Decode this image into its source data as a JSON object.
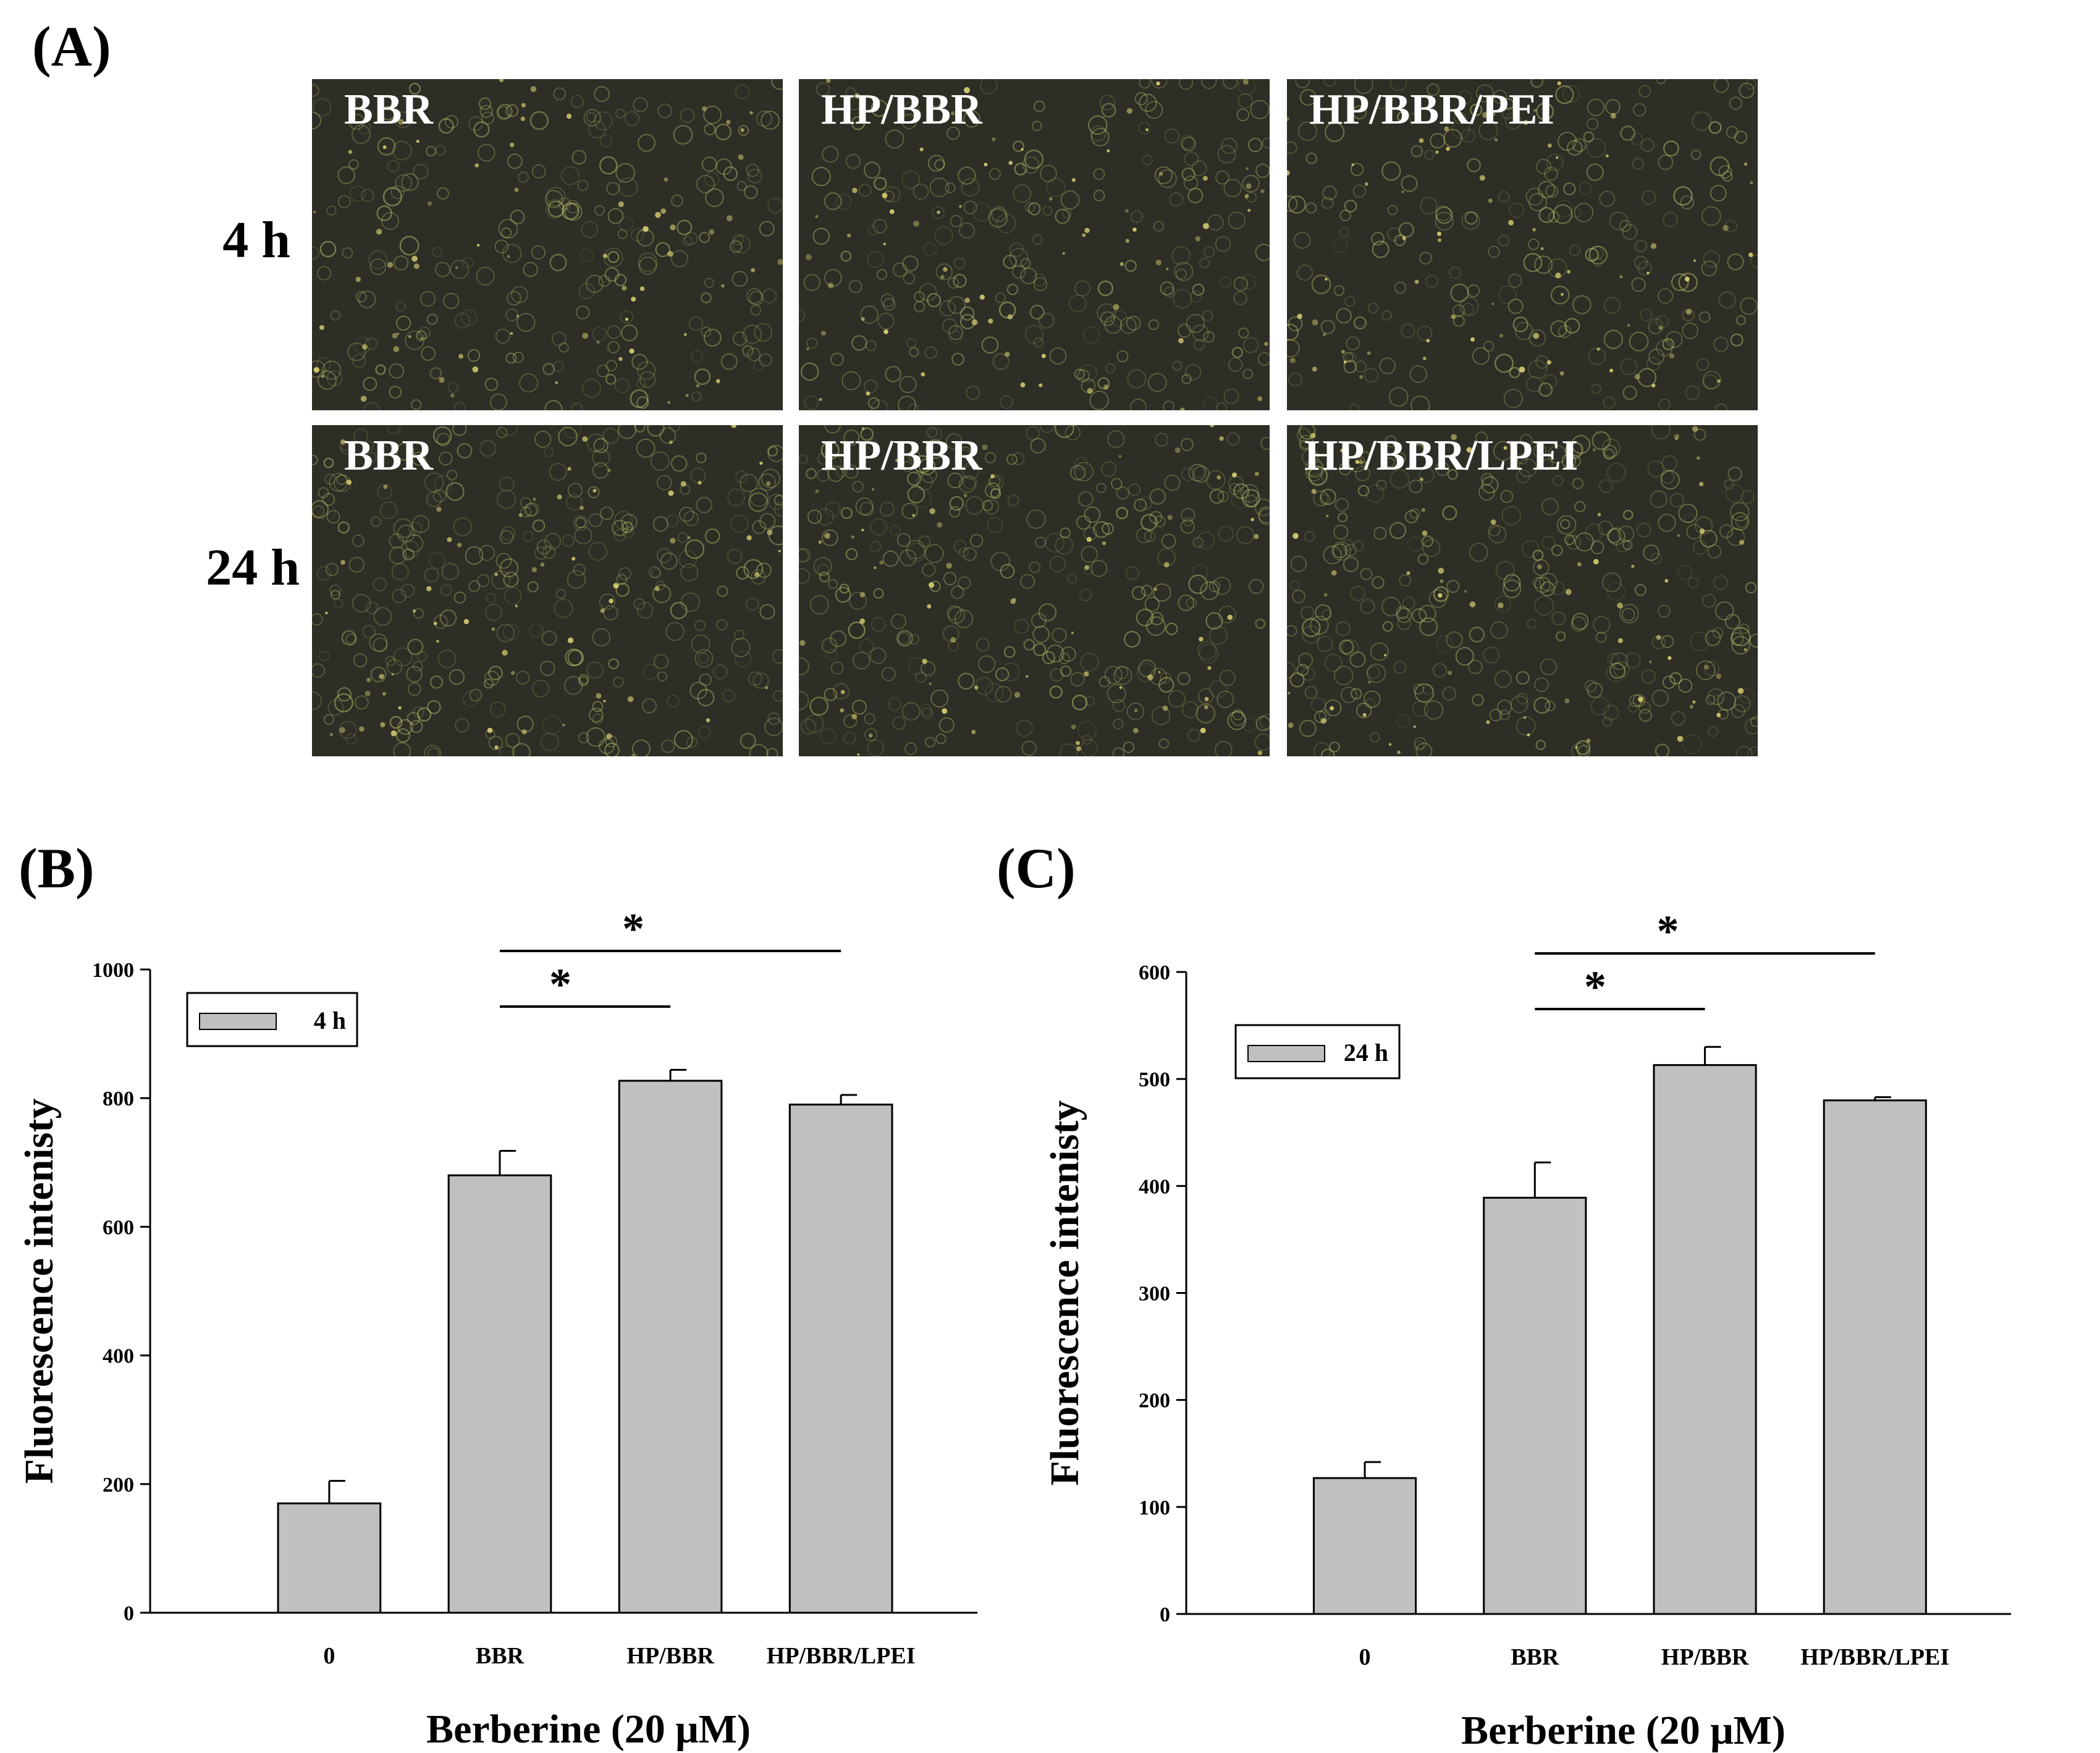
{
  "panels": {
    "a_label": "(A)",
    "b_label": "(B)",
    "c_label": "(C)"
  },
  "micrographs": {
    "rows": [
      {
        "label": "4 h",
        "images": [
          "BBR",
          "HP/BBR",
          "HP/BBR/PEI"
        ]
      },
      {
        "label": "24 h",
        "images": [
          "BBR",
          "HP/BBR",
          "HP/BBR/LPEI"
        ]
      }
    ]
  },
  "colors": {
    "bar_fill": "#c0c0c0",
    "micro_bg": "#2e2e26",
    "cell_glow": "#c9cf73"
  },
  "chart_data": [
    {
      "type": "bar",
      "panel": "(B)",
      "categories": [
        "0",
        "BBR",
        "HP/BBR",
        "HP/BBR/LPEI"
      ],
      "values": [
        170,
        680,
        827,
        790
      ],
      "errors": [
        35,
        38,
        17,
        15
      ],
      "ylim": [
        0,
        1000
      ],
      "yticks": [
        0,
        200,
        400,
        600,
        800,
        1000
      ],
      "ylabel": "Fluorescence intenisty",
      "xlabel": "Berberine (20 μM)",
      "legend": {
        "label": "4 h",
        "position": "top-left"
      },
      "significance": [
        {
          "from": "BBR",
          "to": "HP/BBR",
          "label": "*"
        },
        {
          "from": "BBR",
          "to": "HP/BBR/LPEI",
          "label": "*"
        }
      ]
    },
    {
      "type": "bar",
      "panel": "(C)",
      "categories": [
        "0",
        "BBR",
        "HP/BBR",
        "HP/BBR/LPEI"
      ],
      "values": [
        127,
        389,
        513,
        480
      ],
      "errors": [
        15,
        33,
        17,
        3
      ],
      "ylim": [
        0,
        600
      ],
      "yticks": [
        0,
        100,
        200,
        300,
        400,
        500,
        600
      ],
      "ylabel": "Fluorescence intenisty",
      "xlabel": "Berberine (20 μM)",
      "legend": {
        "label": "24 h",
        "position": "top-left"
      },
      "significance": [
        {
          "from": "BBR",
          "to": "HP/BBR",
          "label": "*"
        },
        {
          "from": "BBR",
          "to": "HP/BBR/LPEI",
          "label": "*"
        }
      ]
    }
  ]
}
